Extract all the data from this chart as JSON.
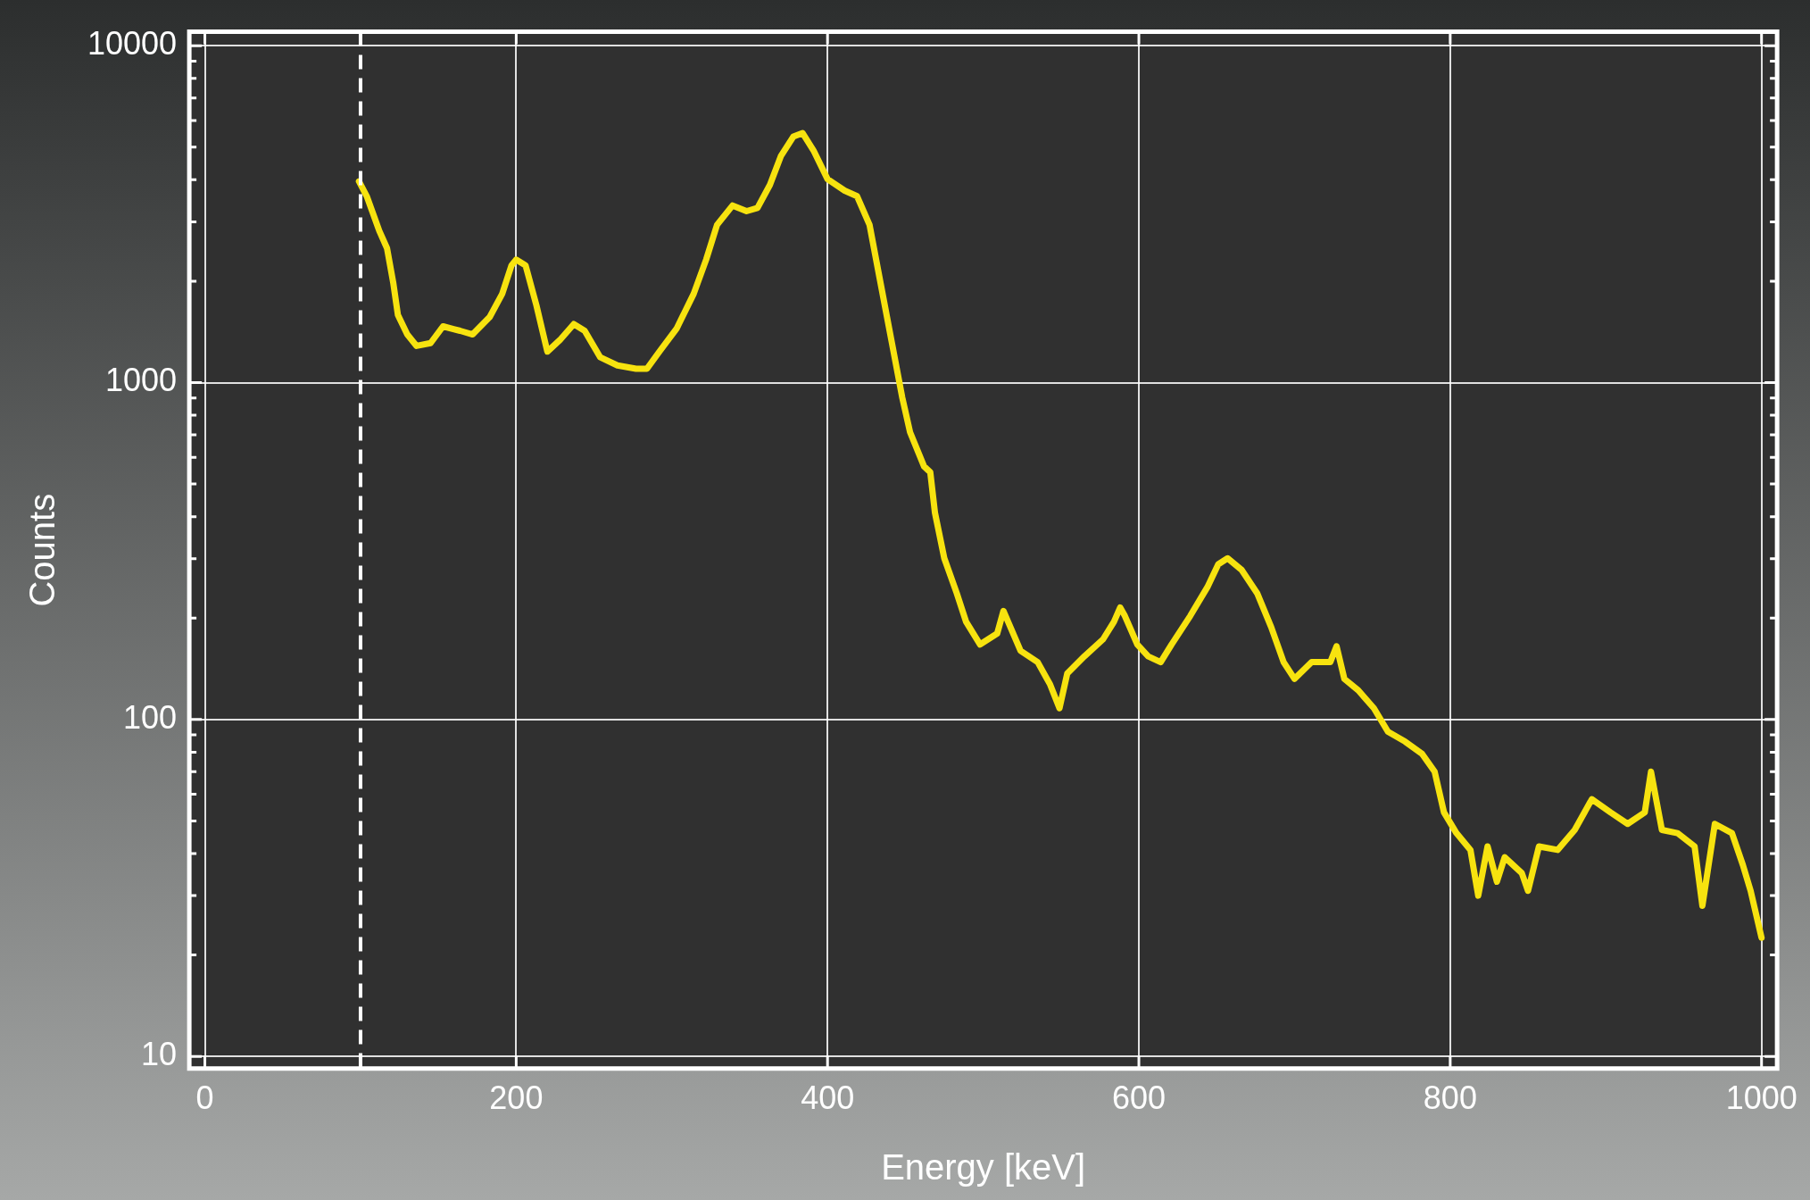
{
  "chart_data": {
    "type": "line",
    "xlabel": "Energy [keV]",
    "ylabel": "Counts",
    "log": "y",
    "grid": true,
    "legend": false,
    "marker": "none",
    "line_style": "solid",
    "xlim": [
      -10,
      1010
    ],
    "xticks": [
      0,
      200,
      400,
      600,
      800,
      1000
    ],
    "ylim": [
      9.2,
      11000
    ],
    "yticks": [
      10,
      {
        "value": 20,
        "label": null
      },
      {
        "value": 30,
        "label": null
      },
      {
        "value": 40,
        "label": null
      },
      {
        "value": 50,
        "label": null
      },
      {
        "value": 60,
        "label": null
      },
      {
        "value": 70,
        "label": null
      },
      {
        "value": 80,
        "label": null
      },
      {
        "value": 90,
        "label": null
      },
      100,
      {
        "value": 200,
        "label": null
      },
      {
        "value": 300,
        "label": null
      },
      {
        "value": 400,
        "label": null
      },
      {
        "value": 500,
        "label": null
      },
      {
        "value": 600,
        "label": null
      },
      {
        "value": 700,
        "label": null
      },
      {
        "value": 800,
        "label": null
      },
      {
        "value": 900,
        "label": null
      },
      1000,
      {
        "value": 2000,
        "label": null
      },
      {
        "value": 3000,
        "label": null
      },
      {
        "value": 4000,
        "label": null
      },
      {
        "value": 5000,
        "label": null
      },
      {
        "value": 6000,
        "label": null
      },
      {
        "value": 7000,
        "label": null
      },
      {
        "value": 8000,
        "label": null
      },
      {
        "value": 9000,
        "label": null
      },
      10000
    ],
    "ref_lines": [
      {
        "axis": "x",
        "value": 100,
        "color": "#ffffff",
        "line_style": "dashed"
      }
    ],
    "series": [
      {
        "color": "#f7e30f",
        "x": [
          99,
          104,
          112,
          117,
          121,
          124,
          130,
          136,
          145,
          153,
          164,
          172,
          183,
          191,
          197,
          200,
          206,
          213,
          220,
          228,
          237,
          244,
          254,
          265,
          277,
          284,
          292,
          303,
          314,
          322,
          329,
          339,
          348,
          355,
          363,
          370,
          378,
          384,
          391,
          400,
          411,
          419,
          427,
          434,
          441,
          448,
          453,
          462,
          466,
          469,
          475,
          483,
          489,
          498,
          509,
          513,
          516,
          524,
          535,
          543,
          549,
          554,
          565,
          577,
          584,
          588,
          591,
          599,
          606,
          614,
          621,
          633,
          644,
          651,
          657,
          666,
          676,
          685,
          693,
          700,
          711,
          723,
          727,
          732,
          741,
          751,
          760,
          771,
          782,
          790,
          796,
          804,
          813,
          818,
          824,
          830,
          835,
          846,
          850,
          857,
          869,
          880,
          891,
          903,
          914,
          925,
          929,
          936,
          946,
          957,
          962,
          970,
          981,
          988,
          993,
          1000
        ],
        "values": [
          3955,
          3575,
          2825,
          2506,
          1981,
          1589,
          1390,
          1285,
          1310,
          1469,
          1425,
          1390,
          1566,
          1834,
          2229,
          2317,
          2229,
          1694,
          1236,
          1337,
          1492,
          1425,
          1189,
          1125,
          1099,
          1099,
          1236,
          1445,
          1834,
          2317,
          2938,
          3355,
          3228,
          3300,
          3865,
          4699,
          5370,
          5505,
          4887,
          4019,
          3715,
          3575,
          2938,
          1981,
          1337,
          903,
          713,
          564,
          542,
          411,
          301,
          237,
          195,
          167,
          180,
          210,
          195,
          160,
          148,
          127,
          108,
          137,
          154,
          173,
          195,
          215,
          203,
          167,
          154,
          148,
          167,
          203,
          247,
          289,
          301,
          278,
          237,
          188,
          148,
          132,
          148,
          148,
          165,
          132,
          122,
          108,
          92,
          86,
          79,
          70,
          53,
          46,
          41,
          30,
          42,
          33,
          39,
          35,
          31,
          42,
          41,
          47,
          58,
          53,
          49,
          53,
          70,
          47,
          46,
          42,
          28,
          49,
          46,
          37,
          31,
          22.5
        ]
      }
    ]
  }
}
